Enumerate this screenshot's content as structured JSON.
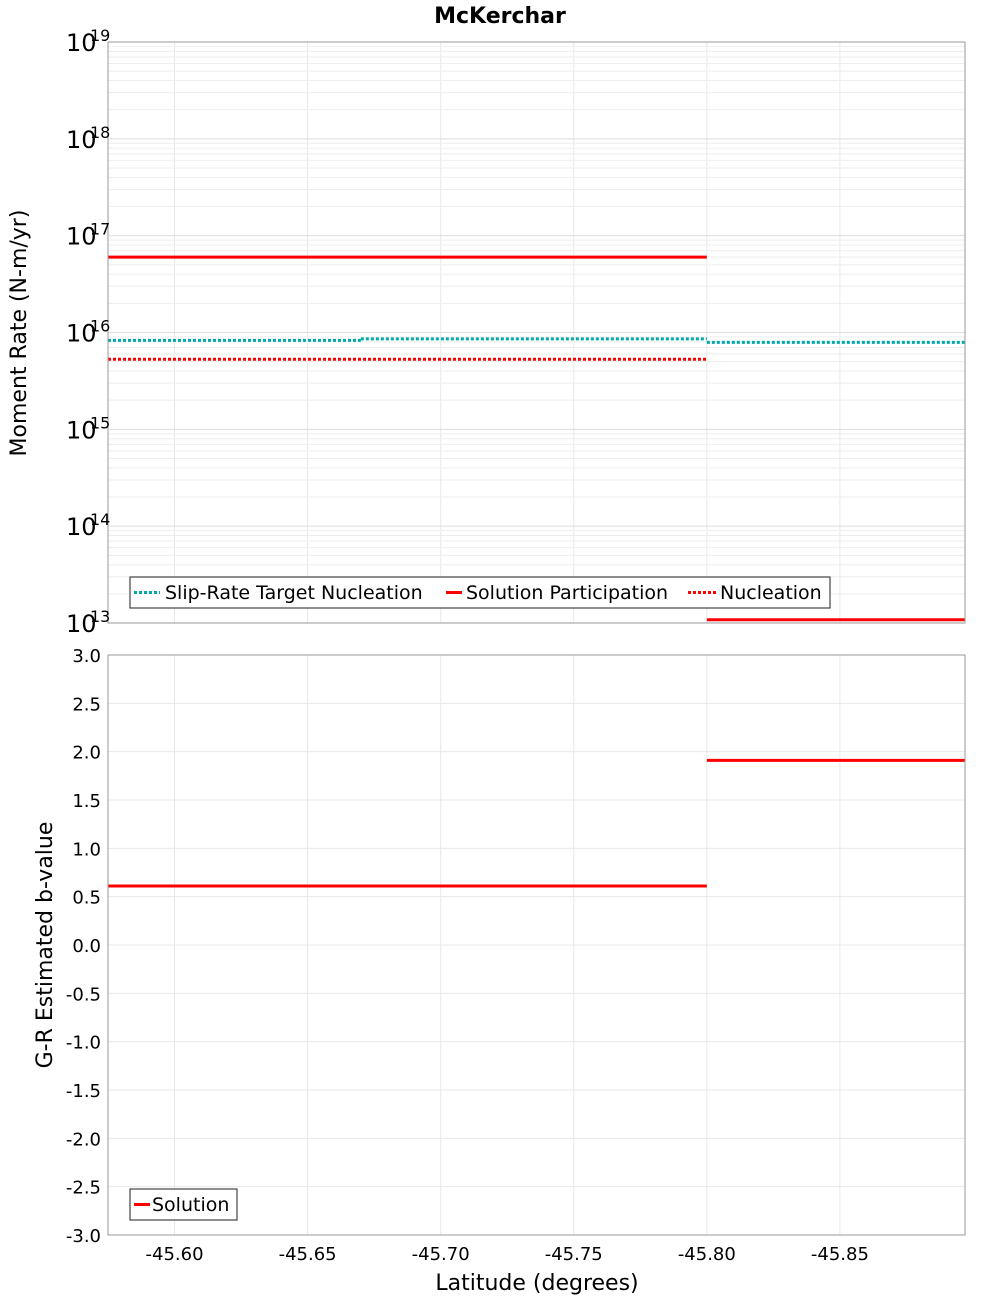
{
  "chart_title": "McKerchar",
  "chart_data": [
    {
      "type": "line",
      "title": "McKerchar",
      "xlabel": "Latitude (degrees)",
      "ylabel": "Moment Rate (N-m/yr)",
      "yscale": "log",
      "xlim": [
        -45.575,
        -45.897
      ],
      "ylim": [
        10000000000000.0,
        1e+19
      ],
      "xreversed": true,
      "ytick_exponents": [
        "19",
        "18",
        "17",
        "16",
        "15",
        "14",
        "13"
      ],
      "ytick_base": "10",
      "legend_position": "bottom-left",
      "series": [
        {
          "name": "Slip-Rate Target Nucleation",
          "style": "dotted",
          "color": "#00aaaa",
          "segments": [
            {
              "x": [
                -45.575,
                -45.67
              ],
              "y": 8300000000000000.0
            },
            {
              "x": [
                -45.67,
                -45.8
              ],
              "y": 8600000000000000.0
            },
            {
              "x": [
                -45.8,
                -45.897
              ],
              "y": 7900000000000000.0
            }
          ]
        },
        {
          "name": "Solution Participation",
          "style": "solid",
          "color": "#ff0000",
          "segments": [
            {
              "x": [
                -45.575,
                -45.8
              ],
              "y": 6e+16
            },
            {
              "x": [
                -45.8,
                -45.897
              ],
              "y": 10800000000000.0
            }
          ]
        },
        {
          "name": "Nucleation",
          "style": "dotted",
          "color": "#ff0000",
          "segments": [
            {
              "x": [
                -45.575,
                -45.8
              ],
              "y": 5300000000000000.0
            }
          ]
        }
      ]
    },
    {
      "type": "line",
      "title": "",
      "xlabel": "Latitude (degrees)",
      "ylabel": "G-R Estimated b-value",
      "xlim": [
        -45.575,
        -45.897
      ],
      "ylim": [
        -3.0,
        3.0
      ],
      "xreversed": true,
      "xticks": [
        -45.6,
        -45.65,
        -45.7,
        -45.75,
        -45.8,
        -45.85
      ],
      "xtick_labels": [
        "-45.60",
        "-45.65",
        "-45.70",
        "-45.75",
        "-45.80",
        "-45.85"
      ],
      "yticks": [
        3.0,
        2.5,
        2.0,
        1.5,
        1.0,
        0.5,
        0.0,
        -0.5,
        -1.0,
        -1.5,
        -2.0,
        -2.5,
        -3.0
      ],
      "ytick_labels": [
        "3.0",
        "2.5",
        "2.0",
        "1.5",
        "1.0",
        "0.5",
        "0.0",
        "-0.5",
        "-1.0",
        "-1.5",
        "-2.0",
        "-2.5",
        "-3.0"
      ],
      "legend_position": "bottom-left",
      "series": [
        {
          "name": "Solution",
          "style": "solid",
          "color": "#ff0000",
          "segments": [
            {
              "x": [
                -45.575,
                -45.8
              ],
              "y": 0.61
            },
            {
              "x": [
                -45.8,
                -45.897
              ],
              "y": 1.91
            }
          ]
        }
      ]
    }
  ]
}
